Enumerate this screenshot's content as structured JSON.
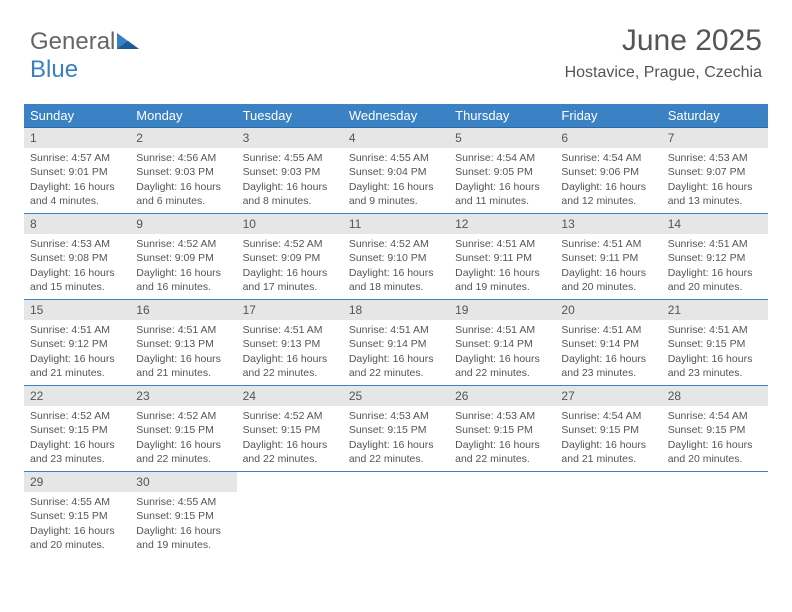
{
  "logo": {
    "text1": "General",
    "text2": "Blue"
  },
  "header": {
    "title": "June 2025",
    "location": "Hostavice, Prague, Czechia"
  },
  "columns": [
    "Sunday",
    "Monday",
    "Tuesday",
    "Wednesday",
    "Thursday",
    "Friday",
    "Saturday"
  ],
  "colors": {
    "header_bg": "#3b82c4",
    "header_text": "#ffffff",
    "daynum_bg": "#e6e6e6",
    "text": "#555555",
    "rule": "#3b82c4"
  },
  "fonts": {
    "title_pt": 30,
    "location_pt": 16,
    "th_pt": 13,
    "daynum_pt": 12,
    "body_pt": 10.5
  },
  "weeks": [
    [
      {
        "n": "1",
        "sr": "Sunrise: 4:57 AM",
        "ss": "Sunset: 9:01 PM",
        "dl": "Daylight: 16 hours and 4 minutes."
      },
      {
        "n": "2",
        "sr": "Sunrise: 4:56 AM",
        "ss": "Sunset: 9:03 PM",
        "dl": "Daylight: 16 hours and 6 minutes."
      },
      {
        "n": "3",
        "sr": "Sunrise: 4:55 AM",
        "ss": "Sunset: 9:03 PM",
        "dl": "Daylight: 16 hours and 8 minutes."
      },
      {
        "n": "4",
        "sr": "Sunrise: 4:55 AM",
        "ss": "Sunset: 9:04 PM",
        "dl": "Daylight: 16 hours and 9 minutes."
      },
      {
        "n": "5",
        "sr": "Sunrise: 4:54 AM",
        "ss": "Sunset: 9:05 PM",
        "dl": "Daylight: 16 hours and 11 minutes."
      },
      {
        "n": "6",
        "sr": "Sunrise: 4:54 AM",
        "ss": "Sunset: 9:06 PM",
        "dl": "Daylight: 16 hours and 12 minutes."
      },
      {
        "n": "7",
        "sr": "Sunrise: 4:53 AM",
        "ss": "Sunset: 9:07 PM",
        "dl": "Daylight: 16 hours and 13 minutes."
      }
    ],
    [
      {
        "n": "8",
        "sr": "Sunrise: 4:53 AM",
        "ss": "Sunset: 9:08 PM",
        "dl": "Daylight: 16 hours and 15 minutes."
      },
      {
        "n": "9",
        "sr": "Sunrise: 4:52 AM",
        "ss": "Sunset: 9:09 PM",
        "dl": "Daylight: 16 hours and 16 minutes."
      },
      {
        "n": "10",
        "sr": "Sunrise: 4:52 AM",
        "ss": "Sunset: 9:09 PM",
        "dl": "Daylight: 16 hours and 17 minutes."
      },
      {
        "n": "11",
        "sr": "Sunrise: 4:52 AM",
        "ss": "Sunset: 9:10 PM",
        "dl": "Daylight: 16 hours and 18 minutes."
      },
      {
        "n": "12",
        "sr": "Sunrise: 4:51 AM",
        "ss": "Sunset: 9:11 PM",
        "dl": "Daylight: 16 hours and 19 minutes."
      },
      {
        "n": "13",
        "sr": "Sunrise: 4:51 AM",
        "ss": "Sunset: 9:11 PM",
        "dl": "Daylight: 16 hours and 20 minutes."
      },
      {
        "n": "14",
        "sr": "Sunrise: 4:51 AM",
        "ss": "Sunset: 9:12 PM",
        "dl": "Daylight: 16 hours and 20 minutes."
      }
    ],
    [
      {
        "n": "15",
        "sr": "Sunrise: 4:51 AM",
        "ss": "Sunset: 9:12 PM",
        "dl": "Daylight: 16 hours and 21 minutes."
      },
      {
        "n": "16",
        "sr": "Sunrise: 4:51 AM",
        "ss": "Sunset: 9:13 PM",
        "dl": "Daylight: 16 hours and 21 minutes."
      },
      {
        "n": "17",
        "sr": "Sunrise: 4:51 AM",
        "ss": "Sunset: 9:13 PM",
        "dl": "Daylight: 16 hours and 22 minutes."
      },
      {
        "n": "18",
        "sr": "Sunrise: 4:51 AM",
        "ss": "Sunset: 9:14 PM",
        "dl": "Daylight: 16 hours and 22 minutes."
      },
      {
        "n": "19",
        "sr": "Sunrise: 4:51 AM",
        "ss": "Sunset: 9:14 PM",
        "dl": "Daylight: 16 hours and 22 minutes."
      },
      {
        "n": "20",
        "sr": "Sunrise: 4:51 AM",
        "ss": "Sunset: 9:14 PM",
        "dl": "Daylight: 16 hours and 23 minutes."
      },
      {
        "n": "21",
        "sr": "Sunrise: 4:51 AM",
        "ss": "Sunset: 9:15 PM",
        "dl": "Daylight: 16 hours and 23 minutes."
      }
    ],
    [
      {
        "n": "22",
        "sr": "Sunrise: 4:52 AM",
        "ss": "Sunset: 9:15 PM",
        "dl": "Daylight: 16 hours and 23 minutes."
      },
      {
        "n": "23",
        "sr": "Sunrise: 4:52 AM",
        "ss": "Sunset: 9:15 PM",
        "dl": "Daylight: 16 hours and 22 minutes."
      },
      {
        "n": "24",
        "sr": "Sunrise: 4:52 AM",
        "ss": "Sunset: 9:15 PM",
        "dl": "Daylight: 16 hours and 22 minutes."
      },
      {
        "n": "25",
        "sr": "Sunrise: 4:53 AM",
        "ss": "Sunset: 9:15 PM",
        "dl": "Daylight: 16 hours and 22 minutes."
      },
      {
        "n": "26",
        "sr": "Sunrise: 4:53 AM",
        "ss": "Sunset: 9:15 PM",
        "dl": "Daylight: 16 hours and 22 minutes."
      },
      {
        "n": "27",
        "sr": "Sunrise: 4:54 AM",
        "ss": "Sunset: 9:15 PM",
        "dl": "Daylight: 16 hours and 21 minutes."
      },
      {
        "n": "28",
        "sr": "Sunrise: 4:54 AM",
        "ss": "Sunset: 9:15 PM",
        "dl": "Daylight: 16 hours and 20 minutes."
      }
    ],
    [
      {
        "n": "29",
        "sr": "Sunrise: 4:55 AM",
        "ss": "Sunset: 9:15 PM",
        "dl": "Daylight: 16 hours and 20 minutes."
      },
      {
        "n": "30",
        "sr": "Sunrise: 4:55 AM",
        "ss": "Sunset: 9:15 PM",
        "dl": "Daylight: 16 hours and 19 minutes."
      },
      null,
      null,
      null,
      null,
      null
    ]
  ]
}
